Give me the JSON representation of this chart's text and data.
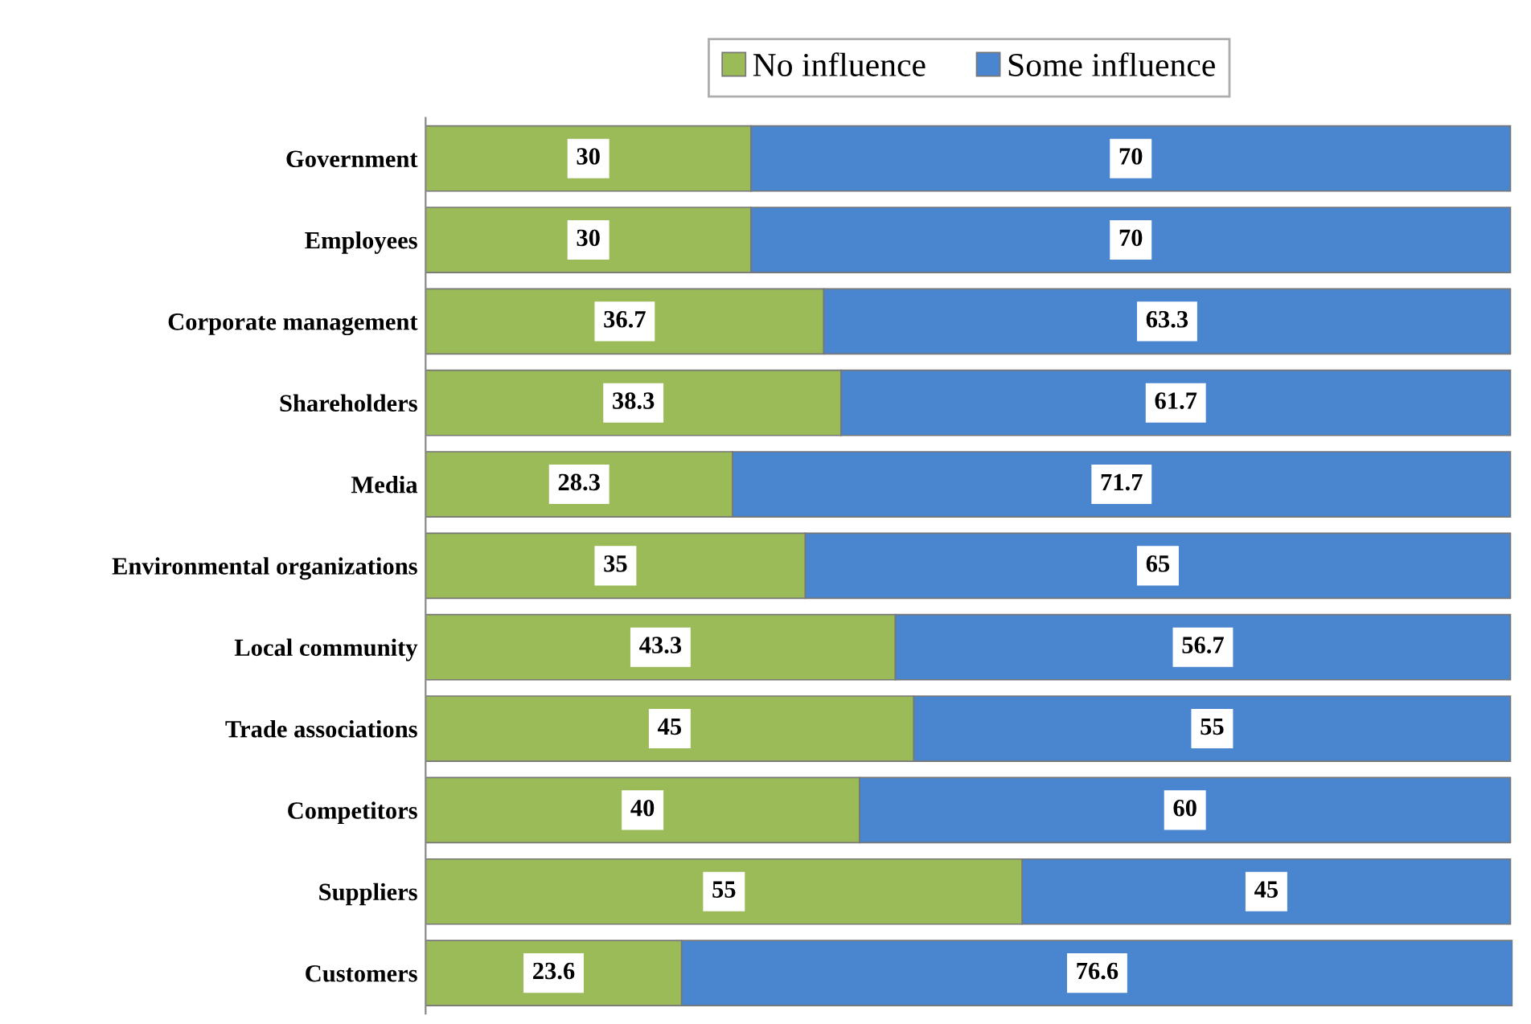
{
  "chart_data": {
    "type": "bar",
    "orientation": "horizontal",
    "stacked": true,
    "categories": [
      "Government",
      "Employees",
      "Corporate management",
      "Shareholders",
      "Media",
      "Environmental organizations",
      "Local community",
      "Trade associations",
      "Competitors",
      "Suppliers",
      "Customers"
    ],
    "series": [
      {
        "name": "No influence",
        "color": "#9bbb59",
        "values": [
          30,
          30,
          36.7,
          38.3,
          28.3,
          35,
          43.3,
          45,
          40,
          55,
          23.6
        ]
      },
      {
        "name": "Some influence",
        "color": "#4a86d0",
        "values": [
          70,
          70,
          63.3,
          61.7,
          71.7,
          65,
          56.7,
          55,
          60,
          45,
          76.6
        ]
      }
    ],
    "data_labels": true,
    "legend": "top",
    "grid": false,
    "tick_labels": "y"
  }
}
